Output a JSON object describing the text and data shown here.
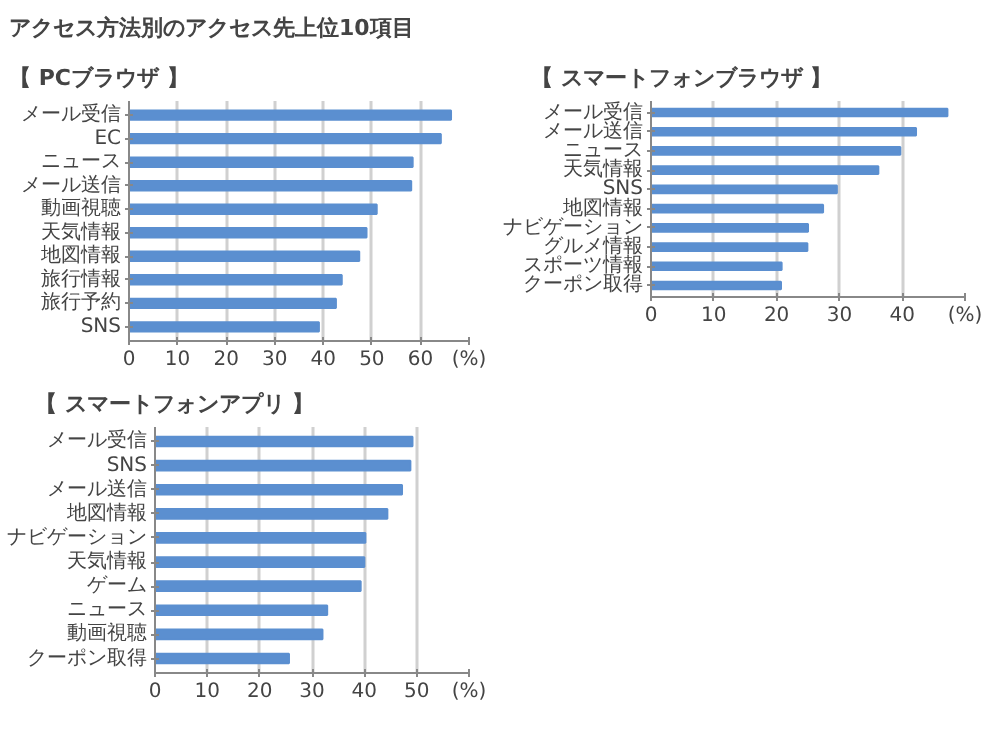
{
  "chart_data": [
    {
      "type": "bar",
      "orientation": "horizontal",
      "title": "アクセス方法別のアクセス先上位10項目",
      "subtitle": "【 PCブラウザ 】",
      "categories": [
        "メール受信",
        "EC",
        "ニュース",
        "メール送信",
        "動画視聴",
        "天気情報",
        "地図情報",
        "旅行情報",
        "旅行予約",
        "SNS"
      ],
      "values": [
        66.3,
        64.2,
        58.4,
        58.1,
        51,
        48.9,
        47.4,
        43.8,
        42.6,
        39.1
      ],
      "color": "#5b8fd0",
      "xlim": [
        0,
        70
      ],
      "xticks": [
        0,
        10,
        20,
        30,
        40,
        50,
        60,
        {
          "value": 70,
          "label": "(%)"
        }
      ],
      "grid": "x"
    },
    {
      "type": "bar",
      "orientation": "horizontal",
      "title": "【 スマートフォンブラウザ 】",
      "categories": [
        "メール受信",
        "メール送信",
        "ニュース",
        "天気情報",
        "SNS",
        "地図情報",
        "ナビゲーション",
        "グルメ情報",
        "スポーツ情報",
        "クーポン取得"
      ],
      "values": [
        47.2,
        42.2,
        39.7,
        36.2,
        29.6,
        27.4,
        25,
        24.9,
        20.8,
        20.7
      ],
      "color": "#5b8fd0",
      "xlim": [
        0,
        50
      ],
      "xticks": [
        0,
        10,
        20,
        30,
        40,
        {
          "value": 50,
          "label": "(%)"
        }
      ],
      "grid": "x"
    },
    {
      "type": "bar",
      "orientation": "horizontal",
      "title": "【 スマートフォンアプリ 】",
      "categories": [
        "メール受信",
        "SNS",
        "メール送信",
        "地図情報",
        "ナビゲーション",
        "天気情報",
        "ゲーム",
        "ニュース",
        "動画視聴",
        "クーポン取得"
      ],
      "values": [
        49.2,
        48.8,
        47.2,
        44.4,
        40.2,
        40,
        39.3,
        32.9,
        32,
        25.6
      ],
      "color": "#5b8fd0",
      "xlim": [
        0,
        60
      ],
      "xticks": [
        0,
        10,
        20,
        30,
        40,
        50,
        {
          "value": 60,
          "label": "(%)"
        }
      ],
      "grid": "x"
    }
  ]
}
